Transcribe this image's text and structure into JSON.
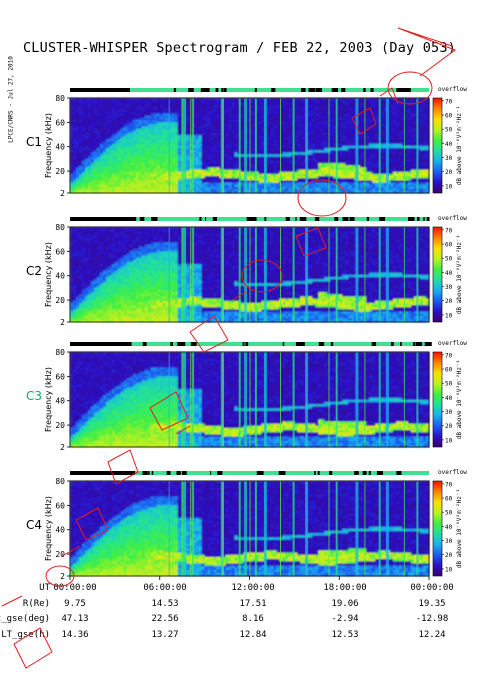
{
  "title": "CLUSTER-WHISPER Spectrogram / FEB 22, 2003 (Day 053)",
  "credit": "LPCE/CNRS - Jul 27, 2010",
  "chart_data": {
    "type": "heatmap",
    "title": "CLUSTER-WHISPER Spectrogram / FEB 22, 2003 (Day 053)",
    "ylabel": "Frequency (kHz)",
    "yticks": [
      2,
      20,
      40,
      60,
      80
    ],
    "ylim": [
      2,
      80
    ],
    "xlim": [
      "00:00:00",
      "24:00:00"
    ],
    "colorbar": {
      "label": "dB above 10⁻⁸V²m⁻²Hz⁻¹",
      "ticks": [
        10,
        20,
        30,
        40,
        50,
        60,
        70
      ],
      "range": [
        5,
        72
      ],
      "top_label": "overflow",
      "colors": [
        "#3a0070",
        "#2b10c8",
        "#1d5cf0",
        "#18b0f0",
        "#20e0a0",
        "#40f040",
        "#c0f020",
        "#f8e000",
        "#ff8000",
        "#ff1000"
      ]
    },
    "panels": [
      {
        "name": "C1",
        "color": "#000000"
      },
      {
        "name": "C2",
        "color": "#000000"
      },
      {
        "name": "C3",
        "color": "#00b060"
      },
      {
        "name": "C4",
        "color": "#000000"
      }
    ],
    "orbit_table": {
      "rows": [
        {
          "label": "UT",
          "values": [
            "00:00:00",
            "06:00:00",
            "12:00:00",
            "18:00:00",
            "00:00:00"
          ]
        },
        {
          "label": "R(Re)",
          "values": [
            "9.75",
            "14.53",
            "17.51",
            "19.06",
            "19.35"
          ]
        },
        {
          "label": "Lat_gse(deg)",
          "values": [
            "47.13",
            "22.56",
            "8.16",
            "-2.94",
            "-12.98"
          ]
        },
        {
          "label": "LT_gse(h)",
          "values": [
            "14.36",
            "13.27",
            "12.84",
            "12.53",
            "12.24"
          ]
        }
      ]
    },
    "grid": false
  }
}
